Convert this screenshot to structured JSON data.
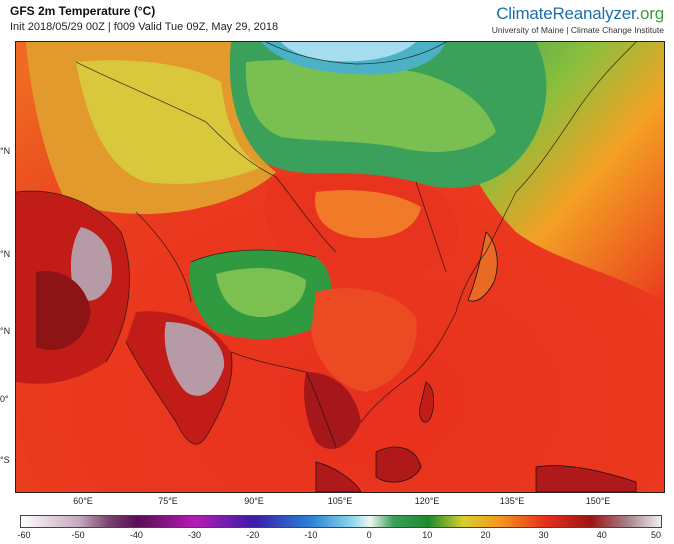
{
  "header": {
    "title": "GFS 2m Temperature (°C)",
    "subtitle": "Init 2018/05/29 00Z | f009 Valid Tue 09Z, May 29, 2018"
  },
  "brand": {
    "name_part1": "ClimateReanalyzer",
    "name_part2": ".org",
    "affiliation": "University of Maine | Climate Change Institute"
  },
  "colors": {
    "ocean_tropical": "#e8301e",
    "ocean_mid": "#f05f1e",
    "land_hot": "#c21c18",
    "land_very_hot": "#8c1414",
    "land_extreme": "#b69aa6",
    "land_warm": "#ef7c22",
    "land_mild": "#e0c83a",
    "land_cool": "#7ac24b",
    "land_cold": "#3aa05a",
    "land_frigid": "#5ab2c8",
    "ice": "#a6ddee",
    "coastline": "#111111"
  },
  "lat_labels": [
    {
      "text": "°N"
    },
    {
      "text": "°N"
    },
    {
      "text": "°N"
    },
    {
      "text": "0°"
    },
    {
      "text": "°S"
    }
  ],
  "lon_labels": [
    {
      "text": "60°E"
    },
    {
      "text": "75°E"
    },
    {
      "text": "90°E"
    },
    {
      "text": "105°E"
    },
    {
      "text": "120°E"
    },
    {
      "text": "135°E"
    },
    {
      "text": "150°E"
    }
  ],
  "colorbar": {
    "min": -60,
    "max": 50,
    "ticks": [
      "-60",
      "-50",
      "-40",
      "-30",
      "-20",
      "-10",
      "0",
      "10",
      "20",
      "30",
      "40",
      "50"
    ],
    "stops": [
      {
        "value": -60,
        "color": "#ffffff"
      },
      {
        "value": -50,
        "color": "#c6a7bb"
      },
      {
        "value": -45,
        "color": "#7a4570"
      },
      {
        "value": -40,
        "color": "#5a0c55"
      },
      {
        "value": -30,
        "color": "#b41cb4"
      },
      {
        "value": -20,
        "color": "#3a1ca8"
      },
      {
        "value": -10,
        "color": "#2a84d6"
      },
      {
        "value": -3,
        "color": "#8ed8ec"
      },
      {
        "value": 0,
        "color": "#eef7f2"
      },
      {
        "value": 4,
        "color": "#3aa05a"
      },
      {
        "value": 10,
        "color": "#1e8a2e"
      },
      {
        "value": 16,
        "color": "#d8cf2e"
      },
      {
        "value": 22,
        "color": "#f49a1e"
      },
      {
        "value": 30,
        "color": "#e8301e"
      },
      {
        "value": 38,
        "color": "#9c1414"
      },
      {
        "value": 44,
        "color": "#a47e88"
      },
      {
        "value": 50,
        "color": "#f2eeee"
      }
    ]
  }
}
